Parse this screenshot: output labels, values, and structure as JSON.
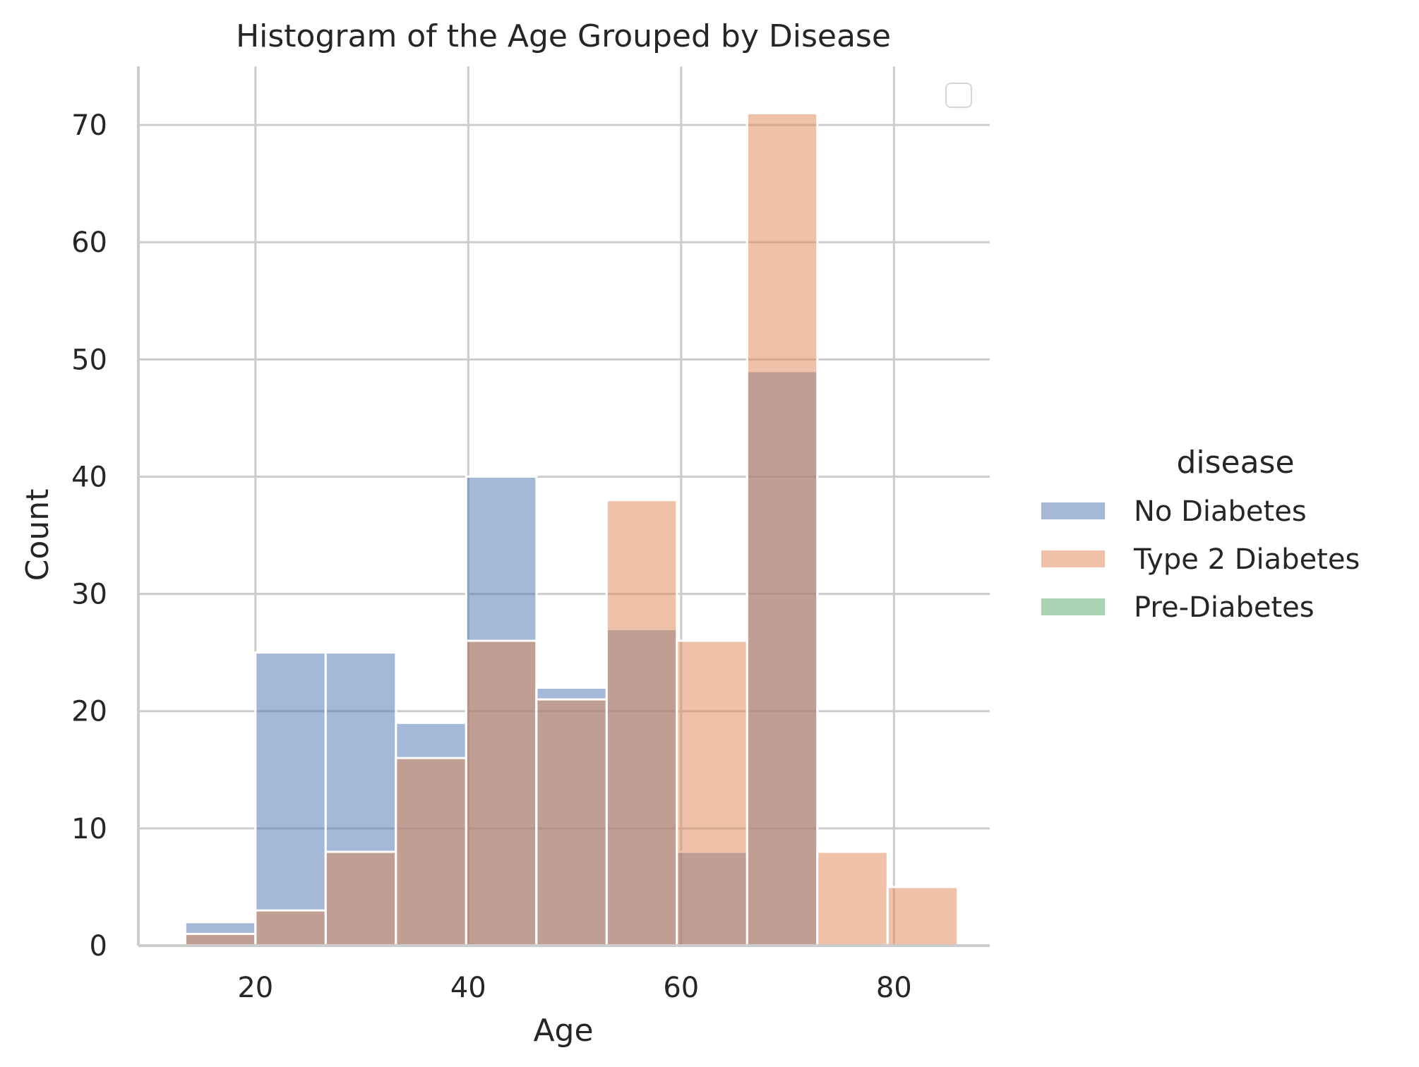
{
  "chart_data": {
    "type": "bar",
    "title": "Histogram of the Age Grouped by Disease",
    "xlabel": "Age",
    "ylabel": "Count",
    "xlim": [
      9,
      89
    ],
    "ylim": [
      0,
      75
    ],
    "xticks": [
      20,
      40,
      60,
      80
    ],
    "yticks": [
      0,
      10,
      20,
      30,
      40,
      50,
      60,
      70
    ],
    "grid": true,
    "legend": {
      "title": "disease",
      "placement": "right",
      "entries": [
        "No Diabetes",
        "Type 2 Diabetes",
        "Pre-Diabetes"
      ]
    },
    "colors": {
      "No Diabetes": "#4c72b0",
      "Type 2 Diabetes": "#dd8452",
      "Pre-Diabetes": "#55a868"
    },
    "bin_edges": [
      13.4,
      20.0,
      26.6,
      33.2,
      39.8,
      46.4,
      53.0,
      59.6,
      66.2,
      72.8,
      79.4,
      86.0
    ],
    "series": [
      {
        "name": "No Diabetes",
        "values": [
          2,
          25,
          25,
          19,
          40,
          22,
          27,
          8,
          49,
          0,
          0
        ]
      },
      {
        "name": "Type 2 Diabetes",
        "values": [
          1,
          3,
          8,
          16,
          26,
          21,
          38,
          26,
          71,
          8,
          5
        ]
      },
      {
        "name": "Pre-Diabetes",
        "values": [
          0,
          0,
          0,
          0,
          0,
          0,
          0,
          0,
          0,
          0,
          0
        ]
      }
    ]
  }
}
